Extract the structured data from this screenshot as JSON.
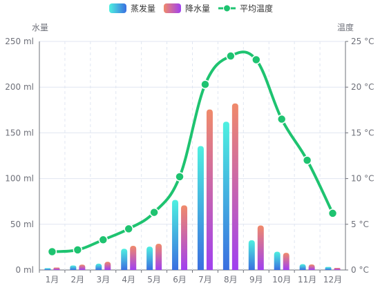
{
  "chart_data": {
    "type": "bar+line",
    "categories": [
      "1月",
      "2月",
      "3月",
      "4月",
      "5月",
      "6月",
      "7月",
      "8月",
      "9月",
      "10月",
      "11月",
      "12月"
    ],
    "series": [
      {
        "name": "蒸发量",
        "type": "bar",
        "axis": "left",
        "color_top": "#4ef0e0",
        "color_bottom": "#3a6fe0",
        "values": [
          2.0,
          4.9,
          7.0,
          23.2,
          25.6,
          76.7,
          135.6,
          162.2,
          32.6,
          20.0,
          6.4,
          3.3
        ]
      },
      {
        "name": "降水量",
        "type": "bar",
        "axis": "left",
        "color_top": "#f08a6a",
        "color_bottom": "#a040f0",
        "values": [
          2.6,
          5.9,
          9.0,
          26.4,
          28.7,
          70.7,
          175.6,
          182.2,
          48.7,
          18.8,
          6.0,
          2.3
        ]
      },
      {
        "name": "平均温度",
        "type": "line",
        "axis": "right",
        "color": "#1ec370",
        "smooth": true,
        "values": [
          2.0,
          2.2,
          3.3,
          4.5,
          6.3,
          10.2,
          20.3,
          23.4,
          23.0,
          16.5,
          12.0,
          6.2
        ]
      }
    ],
    "y_left": {
      "name": "水量",
      "min": 0,
      "max": 250,
      "interval": 50,
      "unit": "ml"
    },
    "y_right": {
      "name": "温度",
      "min": 0,
      "max": 25,
      "interval": 5,
      "unit": "°C"
    },
    "legend_position": "top-center",
    "grid": true
  }
}
